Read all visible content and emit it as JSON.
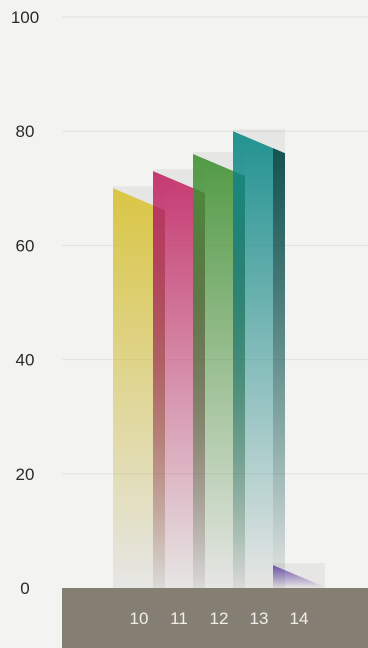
{
  "chart_data": {
    "type": "bar",
    "categories": [
      "10",
      "11",
      "12",
      "13",
      "14"
    ],
    "values": [
      70,
      73,
      76,
      80,
      4
    ],
    "title": "",
    "xlabel": "",
    "ylabel": "",
    "ylim": [
      0,
      100
    ],
    "yticks": [
      "0",
      "20",
      "40",
      "60",
      "80",
      "100"
    ],
    "grid": true,
    "legend": "none",
    "colors": [
      "#d9c43c",
      "#c4306b",
      "#4a963c",
      "#178e8c",
      "#6a4aa8"
    ],
    "axis_band_color": "#857f73"
  }
}
